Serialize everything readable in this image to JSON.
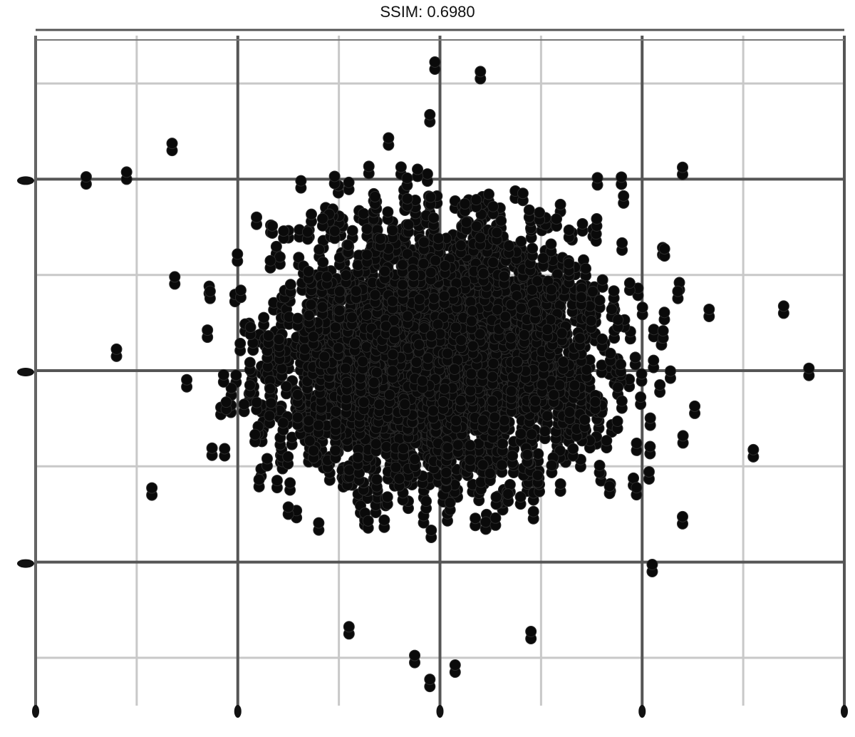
{
  "chart_data": {
    "type": "scatter",
    "title": "SSIM: 0.6980",
    "xlabel": "",
    "ylabel": "",
    "xlim": [
      -4,
      4
    ],
    "ylim": [
      -3.5,
      3.5
    ],
    "major_x_ticks": [
      -4,
      -2,
      0,
      2,
      4
    ],
    "major_y_ticks": [
      -2,
      0,
      2
    ],
    "minor_x_ticks": [
      -3,
      -1,
      1,
      3
    ],
    "minor_y_ticks": [
      -3,
      -1,
      1,
      3
    ],
    "grid": true,
    "point_color": "#000000",
    "cluster_center": [
      0,
      0.2
    ],
    "cluster_spread": [
      1.15,
      0.95
    ],
    "point_count": 2600,
    "sample_points": [
      [
        -0.05,
        3.15
      ],
      [
        0.4,
        3.05
      ],
      [
        -0.1,
        2.6
      ],
      [
        -2.65,
        2.3
      ],
      [
        -3.5,
        1.95
      ],
      [
        -3.1,
        2.0
      ],
      [
        -3.2,
        0.15
      ],
      [
        2.4,
        2.05
      ],
      [
        3.4,
        0.6
      ],
      [
        3.65,
        -0.05
      ],
      [
        3.1,
        -0.9
      ],
      [
        2.4,
        -1.6
      ],
      [
        2.1,
        -2.1
      ],
      [
        -0.9,
        -2.75
      ],
      [
        -0.25,
        -3.05
      ],
      [
        0.15,
        -3.15
      ],
      [
        -0.1,
        -3.3
      ],
      [
        0.9,
        -2.8
      ],
      [
        -1.5,
        -1.5
      ],
      [
        -2.85,
        -1.3
      ]
    ]
  }
}
